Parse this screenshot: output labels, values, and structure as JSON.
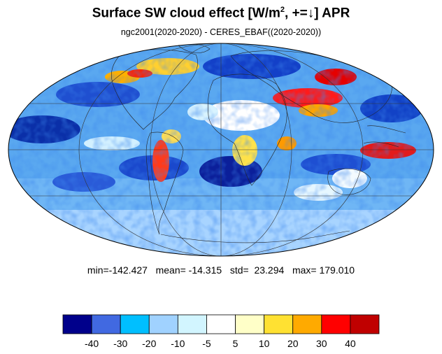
{
  "header": {
    "title_main": "Surface SW cloud effect [W/m",
    "title_sup": "2",
    "title_tail": ", +=↓]  APR",
    "subtitle": "ngc2001(2020-2020) - CERES_EBAF((2020-2020))"
  },
  "stats": {
    "text": "min=-142.427   mean= -14.315   std=  23.294   max= 179.010"
  },
  "colorbar": {
    "colors": [
      "#00008b",
      "#4169e1",
      "#00bfff",
      "#a0d2ff",
      "#d2f5ff",
      "#ffffff",
      "#ffffc8",
      "#ffe132",
      "#ffaa00",
      "#ff0000",
      "#c00000"
    ],
    "labels": [
      "-40",
      "-30",
      "-20",
      "-10",
      "-5",
      "5",
      "10",
      "20",
      "30",
      "40"
    ]
  },
  "map": {
    "projection": "Mollweide"
  }
}
